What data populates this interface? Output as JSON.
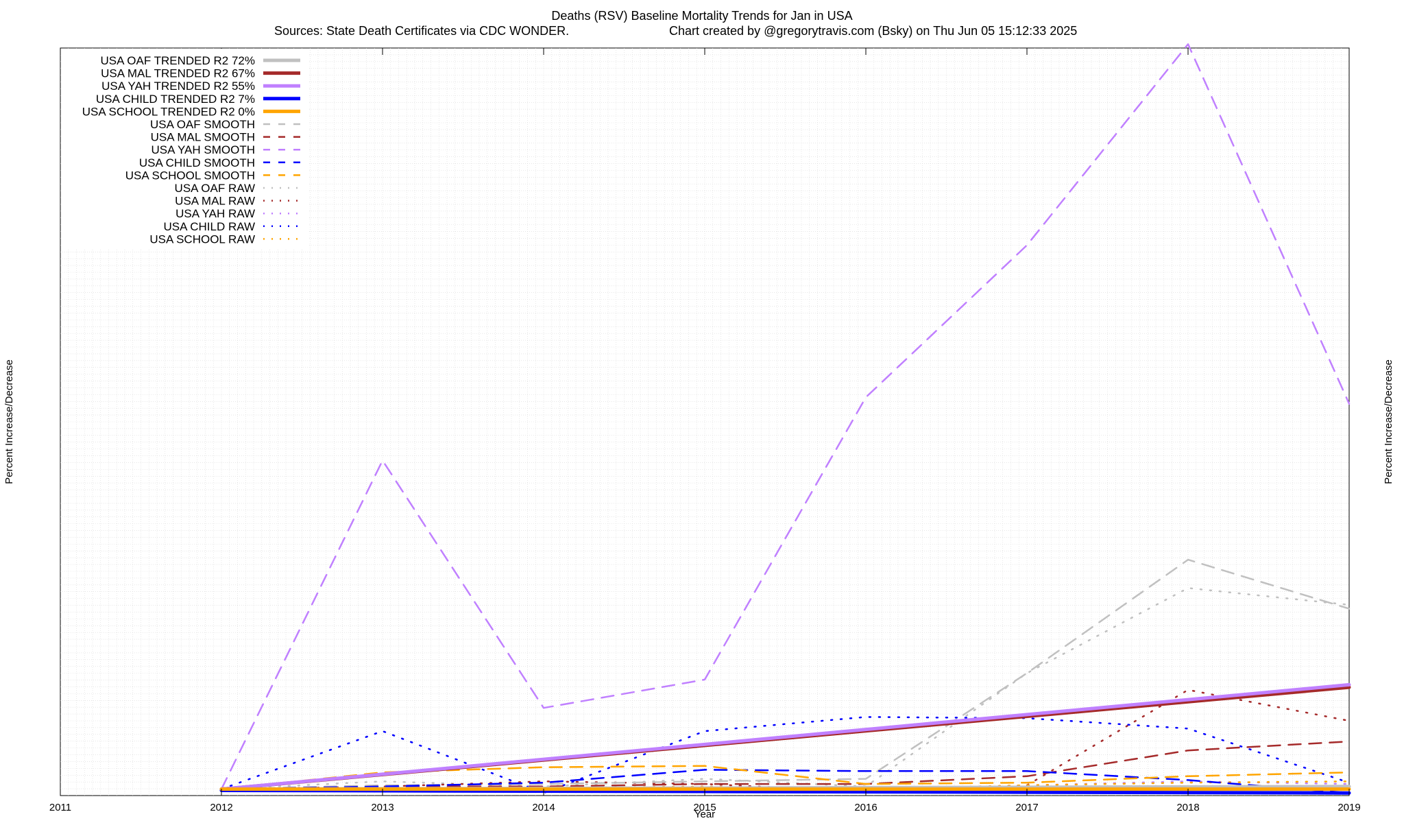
{
  "title": "Deaths (RSV)  Baseline Mortality Trends for Jan in USA",
  "sources": "Sources: State Death Certificates via CDC WONDER.",
  "credit": "Chart created by @gregorytravis.com (Bsky) on Thu Jun 05 15:12:33 2025",
  "chart_data": {
    "type": "line",
    "xlabel": "Year",
    "ylabel": "Percent Increase/Decrease",
    "x_ticks": [
      "2011",
      "2012",
      "2013",
      "2014",
      "2015",
      "2016",
      "2017",
      "2018",
      "2019"
    ],
    "xlim": [
      2011,
      2019
    ],
    "ylim": [
      -50,
      5750
    ],
    "grid": true,
    "legend_position": "top-left",
    "series": [
      {
        "name": "USA OAF TRENDED R2  72%",
        "style": "trended",
        "color": "#c0c0c0",
        "x": [
          2012,
          2019
        ],
        "y": [
          0,
          20
        ]
      },
      {
        "name": "USA MAL TRENDED R2  67%",
        "style": "trended",
        "color": "#a52a2a",
        "x": [
          2012,
          2019
        ],
        "y": [
          0,
          790
        ]
      },
      {
        "name": "USA YAH TRENDED R2  55%",
        "style": "trended",
        "color": "#c080ff",
        "x": [
          2012,
          2019
        ],
        "y": [
          0,
          810
        ]
      },
      {
        "name": "USA CHILD TRENDED R2   7%",
        "style": "trended",
        "color": "#0000ff",
        "x": [
          2012,
          2019
        ],
        "y": [
          -10,
          -30
        ]
      },
      {
        "name": "USA SCHOOL TRENDED R2   0%",
        "style": "trended",
        "color": "#ffa500",
        "x": [
          2012,
          2019
        ],
        "y": [
          0,
          0
        ]
      },
      {
        "name": "USA OAF SMOOTH",
        "style": "smooth",
        "color": "#c0c0c0",
        "x": [
          2012,
          2013,
          2014,
          2015,
          2016,
          2017,
          2018,
          2019
        ],
        "y": [
          0,
          30,
          40,
          60,
          80,
          900,
          1780,
          1400
        ]
      },
      {
        "name": "USA MAL SMOOTH",
        "style": "smooth",
        "color": "#a52a2a",
        "x": [
          2012,
          2013,
          2014,
          2015,
          2016,
          2017,
          2018,
          2019
        ],
        "y": [
          0,
          20,
          20,
          40,
          40,
          100,
          300,
          370
        ]
      },
      {
        "name": "USA YAH SMOOTH",
        "style": "smooth",
        "color": "#c080ff",
        "x": [
          2012,
          2013,
          2014,
          2015,
          2016,
          2017,
          2018,
          2019
        ],
        "y": [
          0,
          2550,
          630,
          850,
          3040,
          4220,
          5780,
          2990
        ]
      },
      {
        "name": "USA CHILD SMOOTH",
        "style": "smooth",
        "color": "#0000ff",
        "x": [
          2012,
          2013,
          2014,
          2015,
          2016,
          2017,
          2018,
          2019
        ],
        "y": [
          0,
          20,
          50,
          150,
          140,
          140,
          70,
          -30
        ]
      },
      {
        "name": "USA SCHOOL SMOOTH",
        "style": "smooth",
        "color": "#ffa500",
        "x": [
          2012,
          2013,
          2014,
          2015,
          2016,
          2017,
          2018,
          2019
        ],
        "y": [
          0,
          130,
          170,
          180,
          40,
          50,
          100,
          130
        ]
      },
      {
        "name": "USA OAF RAW",
        "style": "raw",
        "color": "#c0c0c0",
        "x": [
          2012,
          2013,
          2014,
          2015,
          2016,
          2017,
          2018,
          2019
        ],
        "y": [
          0,
          60,
          20,
          80,
          20,
          900,
          1560,
          1430
        ]
      },
      {
        "name": "USA MAL RAW",
        "style": "raw",
        "color": "#a52a2a",
        "x": [
          2012,
          2013,
          2014,
          2015,
          2016,
          2017,
          2018,
          2019
        ],
        "y": [
          0,
          20,
          60,
          40,
          -20,
          30,
          770,
          530
        ]
      },
      {
        "name": "USA YAH RAW",
        "style": "raw",
        "color": "#c080ff",
        "x": [
          2012,
          2013,
          2014,
          2015,
          2016,
          2017,
          2018,
          2019
        ],
        "y": [
          0,
          -20,
          -10,
          20,
          0,
          30,
          60,
          40
        ]
      },
      {
        "name": "USA CHILD RAW",
        "style": "raw",
        "color": "#0000ff",
        "x": [
          2012,
          2013,
          2014,
          2015,
          2016,
          2017,
          2018,
          2019
        ],
        "y": [
          0,
          450,
          -30,
          450,
          560,
          550,
          470,
          50
        ]
      },
      {
        "name": "USA SCHOOL RAW",
        "style": "raw",
        "color": "#ffa500",
        "x": [
          2012,
          2013,
          2014,
          2015,
          2016,
          2017,
          2018,
          2019
        ],
        "y": [
          0,
          -10,
          10,
          20,
          0,
          30,
          50,
          60
        ]
      }
    ]
  }
}
